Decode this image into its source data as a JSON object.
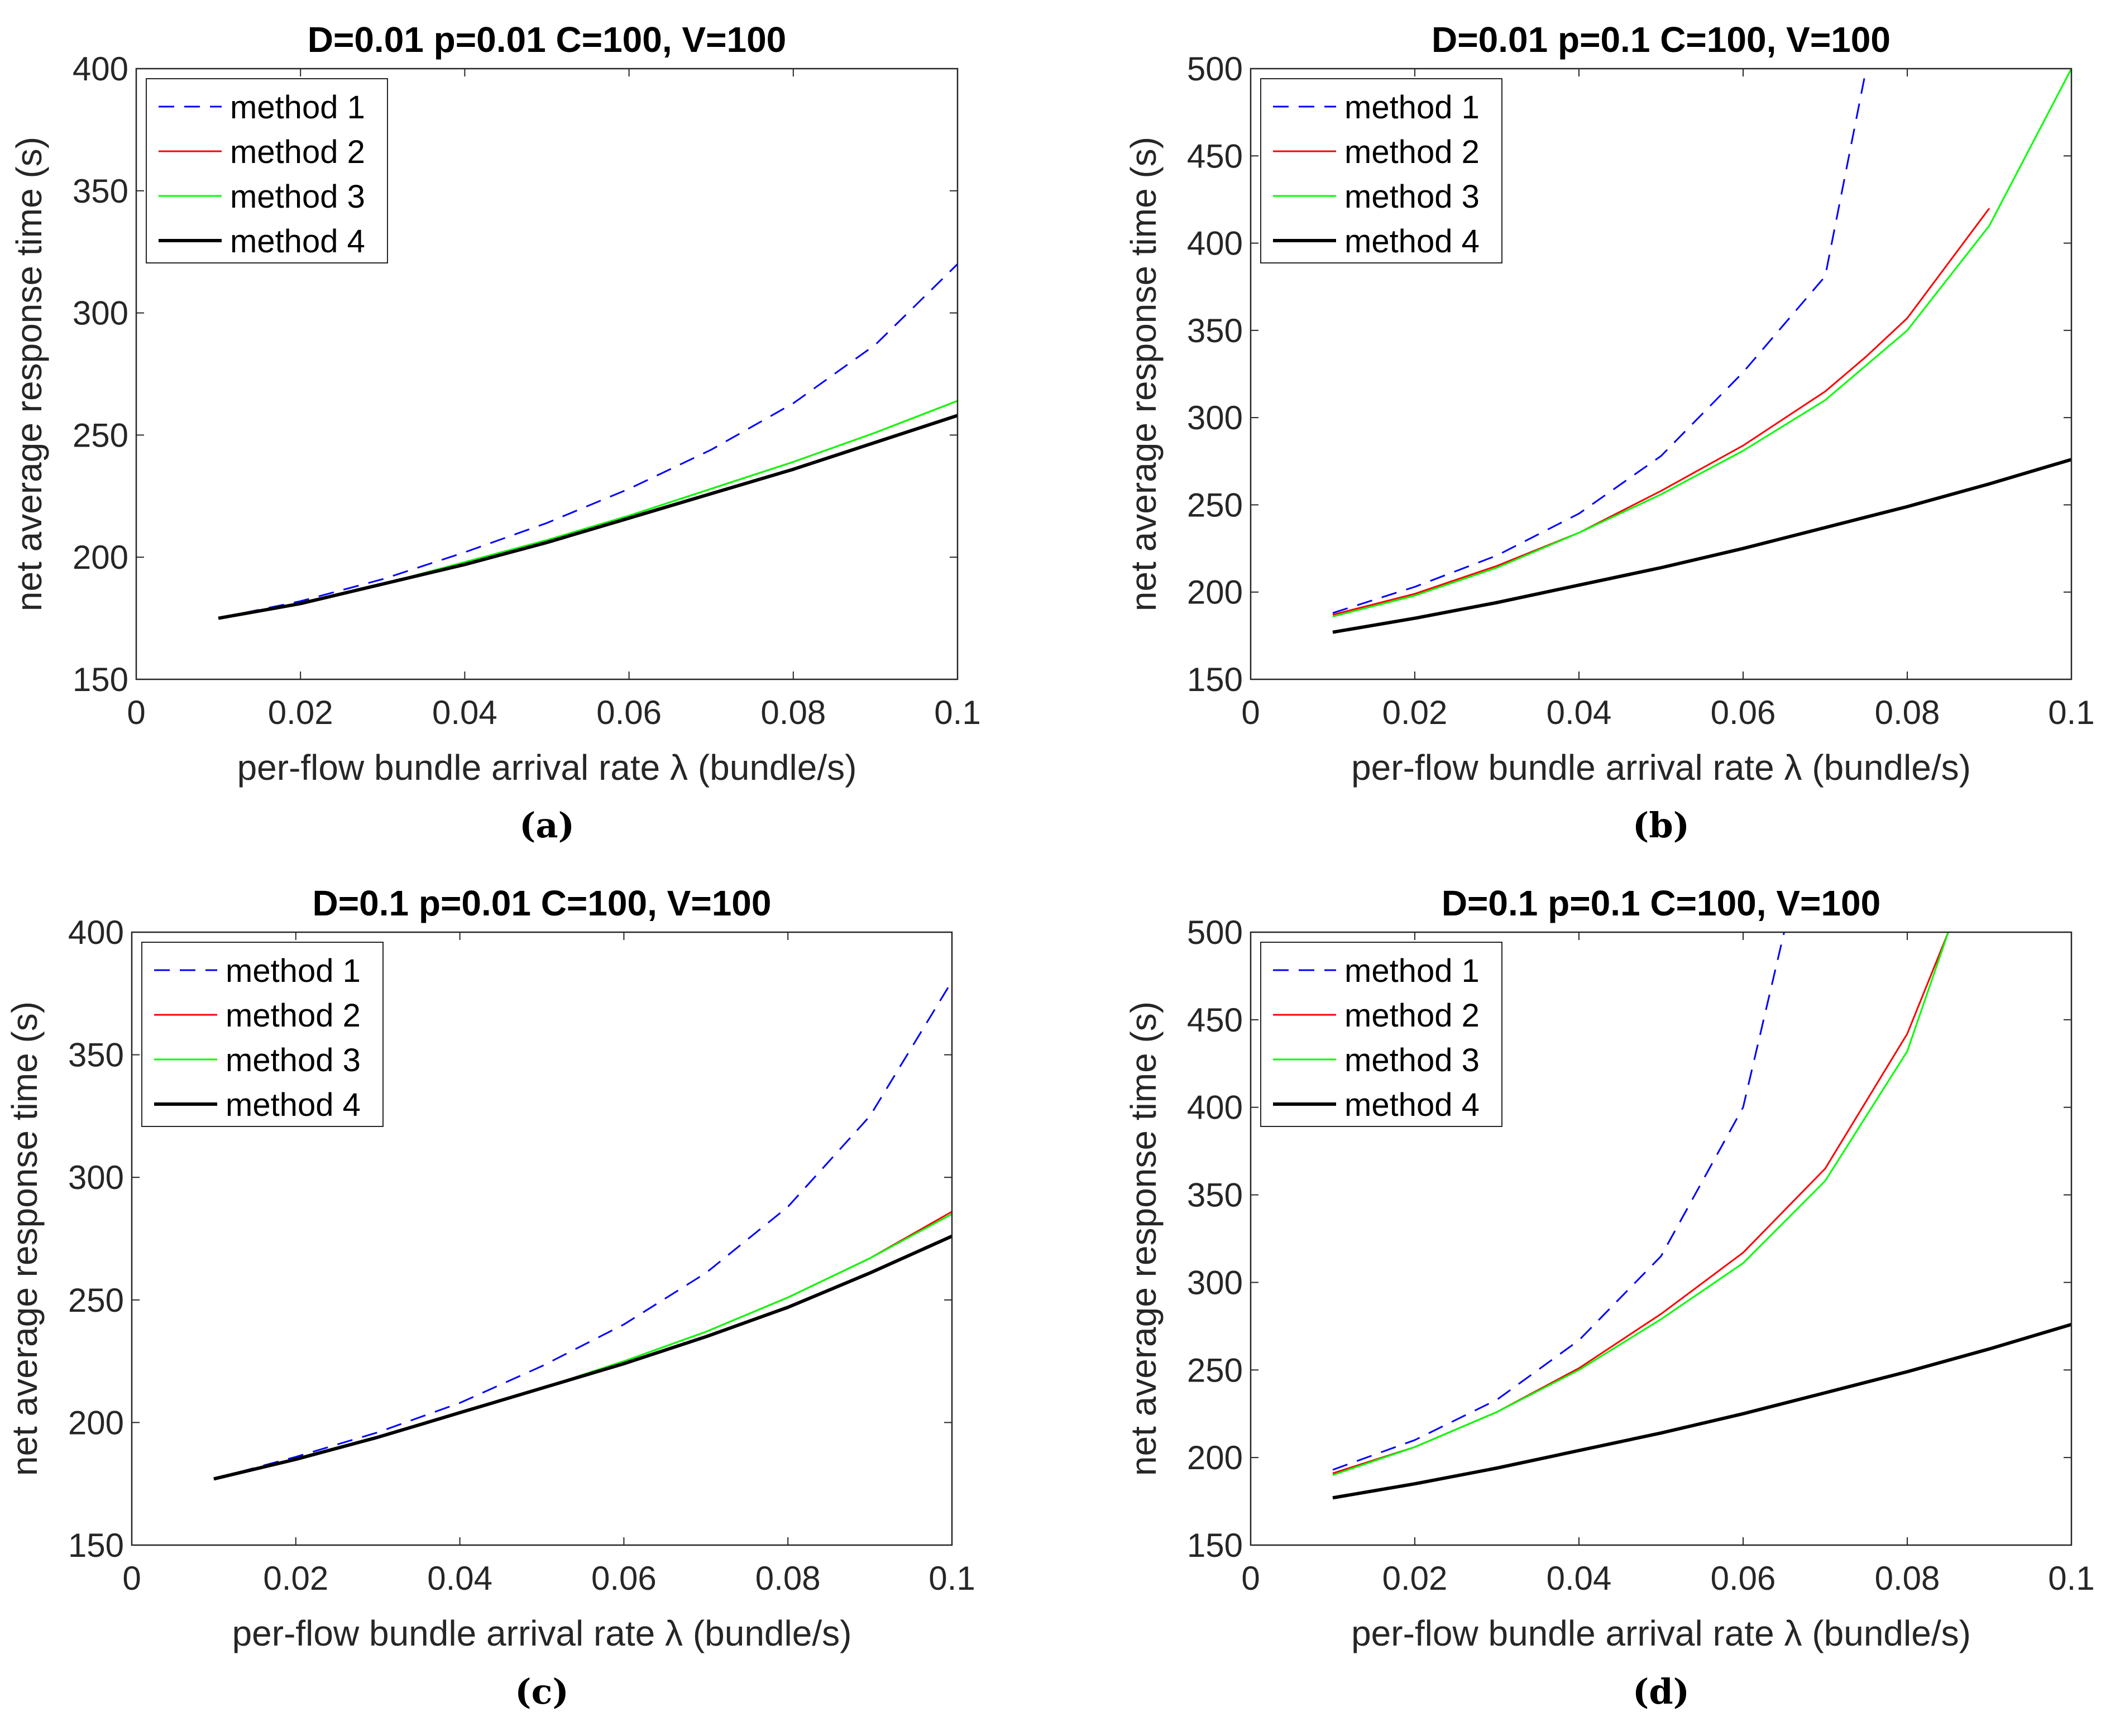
{
  "figure": {
    "common": {
      "xlabel": "per-flow bundle arrival rate  λ (bundle/s)",
      "ylabel": "net average response time (s)",
      "xlim": [
        0,
        0.1
      ],
      "xticks": [
        0,
        0.02,
        0.04,
        0.06,
        0.08,
        0.1
      ],
      "xtick_labels": [
        "0",
        "0.02",
        "0.04",
        "0.06",
        "0.08",
        "0.1"
      ],
      "legend": [
        "method 1",
        "method 2",
        "method 3",
        "method 4"
      ]
    },
    "colors": {
      "method1": "#0000ff",
      "method2": "#ff0000",
      "method3": "#00ff00",
      "method4": "#000000"
    }
  },
  "chart_data": [
    {
      "type": "line",
      "title": "D=0.01 p=0.01 C=100, V=100",
      "caption": "(a)",
      "xlabel": "per-flow bundle arrival rate  λ (bundle/s)",
      "ylabel": "net average response time (s)",
      "ylim": [
        150,
        400
      ],
      "yticks": [
        150,
        200,
        250,
        300,
        350,
        400
      ],
      "ytick_labels": [
        "150",
        "200",
        "250",
        "300",
        "350",
        "400"
      ],
      "legend_position": "top-left",
      "x": [
        0.01,
        0.02,
        0.03,
        0.04,
        0.05,
        0.06,
        0.07,
        0.08,
        0.09,
        0.1
      ],
      "series": [
        {
          "name": "method 1",
          "values": [
            175,
            182,
            191,
            202,
            214,
            228,
            244,
            263,
            287,
            320
          ]
        },
        {
          "name": "method 2",
          "values": [
            175,
            181,
            189,
            198,
            207,
            217,
            228,
            239,
            251,
            264
          ]
        },
        {
          "name": "method 3",
          "values": [
            175,
            181,
            189,
            198,
            207,
            217,
            228,
            239,
            251,
            264
          ]
        },
        {
          "name": "method 4",
          "values": [
            175,
            181,
            189,
            197,
            206,
            216,
            226,
            236,
            247,
            258
          ]
        }
      ]
    },
    {
      "type": "line",
      "title": "D=0.01 p=0.1 C=100, V=100",
      "caption": "(b)",
      "xlabel": "per-flow bundle arrival rate  λ (bundle/s)",
      "ylabel": "net average response time (s)",
      "ylim": [
        150,
        500
      ],
      "yticks": [
        150,
        200,
        250,
        300,
        350,
        400,
        450,
        500
      ],
      "ytick_labels": [
        "150",
        "200",
        "250",
        "300",
        "350",
        "400",
        "450",
        "500"
      ],
      "legend_position": "top-left",
      "x": [
        0.01,
        0.02,
        0.03,
        0.04,
        0.05,
        0.06,
        0.07,
        0.075,
        0.08,
        0.09,
        0.1
      ],
      "series": [
        {
          "name": "method 1",
          "values": [
            188,
            203,
            221,
            245,
            278,
            326,
            381,
            500,
            null,
            null,
            null
          ]
        },
        {
          "name": "method 2",
          "values": [
            187,
            199,
            215,
            234,
            258,
            284,
            315,
            335,
            357,
            420,
            null
          ]
        },
        {
          "name": "method 3",
          "values": [
            186,
            198,
            214,
            234,
            256,
            281,
            310,
            330,
            350,
            410,
            500
          ]
        },
        {
          "name": "method 4",
          "values": [
            177,
            185,
            194,
            204,
            214,
            225,
            237,
            243,
            249,
            262,
            276
          ]
        }
      ]
    },
    {
      "type": "line",
      "title": "D=0.1 p=0.01 C=100, V=100",
      "caption": "(c)",
      "xlabel": "per-flow bundle arrival rate  λ (bundle/s)",
      "ylabel": "net average response time (s)",
      "ylim": [
        150,
        400
      ],
      "yticks": [
        150,
        200,
        250,
        300,
        350,
        400
      ],
      "ytick_labels": [
        "150",
        "200",
        "250",
        "300",
        "350",
        "400"
      ],
      "legend_position": "top-left",
      "x": [
        0.01,
        0.02,
        0.03,
        0.04,
        0.05,
        0.06,
        0.07,
        0.08,
        0.09,
        0.1
      ],
      "series": [
        {
          "name": "method 1",
          "values": [
            177,
            186,
            196,
            208,
            223,
            240,
            261,
            288,
            325,
            380
          ]
        },
        {
          "name": "method 2",
          "values": [
            177,
            185,
            194,
            204,
            214,
            225,
            237,
            251,
            267,
            286
          ]
        },
        {
          "name": "method 3",
          "values": [
            177,
            185,
            194,
            204,
            214,
            225,
            237,
            251,
            267,
            285
          ]
        },
        {
          "name": "method 4",
          "values": [
            177,
            185,
            194,
            204,
            214,
            224,
            235,
            247,
            261,
            276
          ]
        }
      ]
    },
    {
      "type": "line",
      "title": "D=0.1 p=0.1 C=100, V=100",
      "caption": "(d)",
      "xlabel": "per-flow bundle arrival rate  λ (bundle/s)",
      "ylabel": "net average response time (s)",
      "ylim": [
        150,
        500
      ],
      "yticks": [
        150,
        200,
        250,
        300,
        350,
        400,
        450,
        500
      ],
      "ytick_labels": [
        "150",
        "200",
        "250",
        "300",
        "350",
        "400",
        "450",
        "500"
      ],
      "legend_position": "top-left",
      "x": [
        0.01,
        0.02,
        0.03,
        0.04,
        0.05,
        0.06,
        0.065,
        0.07,
        0.08,
        0.085,
        0.09,
        0.1
      ],
      "series": [
        {
          "name": "method 1",
          "values": [
            193,
            210,
            233,
            267,
            315,
            400,
            500,
            null,
            null,
            null,
            null,
            null
          ]
        },
        {
          "name": "method 2",
          "values": [
            191,
            206,
            226,
            251,
            282,
            317,
            null,
            365,
            442,
            500,
            null,
            null
          ]
        },
        {
          "name": "method 3",
          "values": [
            190,
            206,
            226,
            250,
            279,
            311,
            null,
            358,
            432,
            500,
            null,
            null
          ]
        },
        {
          "name": "method 4",
          "values": [
            177,
            185,
            194,
            204,
            214,
            225,
            null,
            237,
            249,
            null,
            262,
            276
          ]
        }
      ]
    }
  ]
}
